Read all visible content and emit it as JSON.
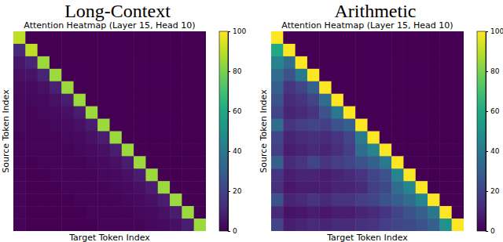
{
  "chart_data": [
    {
      "type": "heatmap",
      "title": "Long-Context",
      "subtitle": "Attention Heatmap (Layer 15, Head 10)",
      "x_label": "Target Token Index",
      "y_label": "Source Token Index",
      "color": "viridis",
      "tick_labels": false,
      "color_range": [
        0,
        100
      ],
      "color_ticks": [
        0,
        20,
        40,
        60,
        80,
        100
      ],
      "cells": [
        [
          90,
          0,
          0,
          0,
          0,
          0,
          0,
          0,
          0,
          0,
          0,
          0,
          0,
          0,
          0,
          0
        ],
        [
          12,
          90,
          0,
          0,
          0,
          0,
          0,
          0,
          0,
          0,
          0,
          0,
          0,
          0,
          0,
          0
        ],
        [
          6,
          10,
          85,
          0,
          0,
          0,
          0,
          0,
          0,
          0,
          0,
          0,
          0,
          0,
          0,
          0
        ],
        [
          4,
          5,
          10,
          85,
          0,
          0,
          0,
          0,
          0,
          0,
          0,
          0,
          0,
          0,
          0,
          0
        ],
        [
          3,
          3,
          4,
          9,
          85,
          0,
          0,
          0,
          0,
          0,
          0,
          0,
          0,
          0,
          0,
          0
        ],
        [
          2,
          2,
          3,
          4,
          8,
          85,
          0,
          0,
          0,
          0,
          0,
          0,
          0,
          0,
          0,
          0
        ],
        [
          2,
          1,
          2,
          3,
          4,
          8,
          85,
          0,
          0,
          0,
          0,
          0,
          0,
          0,
          0,
          0
        ],
        [
          2,
          1,
          1,
          2,
          3,
          4,
          8,
          85,
          0,
          0,
          0,
          0,
          0,
          0,
          0,
          0
        ],
        [
          1,
          1,
          1,
          1,
          2,
          3,
          4,
          8,
          85,
          0,
          0,
          0,
          0,
          0,
          0,
          0
        ],
        [
          1,
          1,
          1,
          1,
          1,
          2,
          3,
          4,
          8,
          85,
          0,
          0,
          0,
          0,
          0,
          0
        ],
        [
          1,
          0,
          1,
          1,
          1,
          1,
          2,
          3,
          4,
          8,
          85,
          0,
          0,
          0,
          0,
          0
        ],
        [
          1,
          0,
          0,
          1,
          1,
          1,
          1,
          2,
          3,
          4,
          8,
          85,
          0,
          0,
          0,
          0
        ],
        [
          1,
          0,
          0,
          0,
          1,
          1,
          1,
          1,
          2,
          3,
          4,
          8,
          85,
          0,
          0,
          0
        ],
        [
          1,
          0,
          0,
          0,
          0,
          1,
          1,
          1,
          1,
          2,
          3,
          4,
          8,
          85,
          0,
          0
        ],
        [
          1,
          0,
          0,
          0,
          0,
          0,
          1,
          1,
          1,
          1,
          2,
          3,
          4,
          8,
          85,
          0
        ],
        [
          1,
          0,
          0,
          0,
          0,
          0,
          0,
          1,
          1,
          1,
          1,
          2,
          3,
          4,
          8,
          85
        ]
      ]
    },
    {
      "type": "heatmap",
      "title": "Arithmetic",
      "subtitle": "Attention Heatmap (Layer 15, Head 10)",
      "x_label": "Target Token Index",
      "y_label": "Source Token Index",
      "color": "viridis",
      "tick_labels": false,
      "color_range": [
        0,
        100
      ],
      "color_ticks": [
        0,
        20,
        40,
        60,
        80,
        100
      ],
      "cells": [
        [
          100,
          0,
          0,
          0,
          0,
          0,
          0,
          0,
          0,
          0,
          0,
          0,
          0,
          0,
          0,
          0
        ],
        [
          60,
          100,
          0,
          0,
          0,
          0,
          0,
          0,
          0,
          0,
          0,
          0,
          0,
          0,
          0,
          0
        ],
        [
          45,
          35,
          100,
          0,
          0,
          0,
          0,
          0,
          0,
          0,
          0,
          0,
          0,
          0,
          0,
          0
        ],
        [
          35,
          25,
          40,
          100,
          0,
          0,
          0,
          0,
          0,
          0,
          0,
          0,
          0,
          0,
          0,
          0
        ],
        [
          30,
          15,
          20,
          30,
          100,
          0,
          0,
          0,
          0,
          0,
          0,
          0,
          0,
          0,
          0,
          0
        ],
        [
          25,
          12,
          15,
          20,
          35,
          100,
          0,
          0,
          0,
          0,
          0,
          0,
          0,
          0,
          0,
          0
        ],
        [
          20,
          10,
          12,
          15,
          25,
          40,
          100,
          0,
          0,
          0,
          0,
          0,
          0,
          0,
          0,
          0
        ],
        [
          35,
          15,
          18,
          20,
          18,
          25,
          30,
          100,
          0,
          0,
          0,
          0,
          0,
          0,
          0,
          0
        ],
        [
          20,
          10,
          12,
          14,
          12,
          15,
          20,
          40,
          100,
          0,
          0,
          0,
          0,
          0,
          0,
          0
        ],
        [
          18,
          8,
          10,
          12,
          10,
          14,
          18,
          35,
          45,
          100,
          0,
          0,
          0,
          0,
          0,
          0
        ],
        [
          30,
          12,
          15,
          20,
          15,
          18,
          20,
          25,
          30,
          40,
          100,
          0,
          0,
          0,
          0,
          0
        ],
        [
          15,
          8,
          10,
          10,
          8,
          10,
          12,
          15,
          20,
          25,
          45,
          100,
          0,
          0,
          0,
          0
        ],
        [
          14,
          6,
          8,
          8,
          8,
          10,
          10,
          12,
          18,
          22,
          35,
          45,
          100,
          0,
          0,
          0
        ],
        [
          25,
          10,
          12,
          15,
          12,
          15,
          15,
          18,
          20,
          25,
          30,
          35,
          45,
          100,
          0,
          0
        ],
        [
          12,
          5,
          6,
          8,
          6,
          8,
          8,
          10,
          12,
          15,
          20,
          25,
          30,
          40,
          100,
          0
        ],
        [
          20,
          8,
          10,
          12,
          10,
          12,
          12,
          14,
          15,
          18,
          20,
          22,
          25,
          30,
          50,
          100
        ]
      ]
    }
  ]
}
